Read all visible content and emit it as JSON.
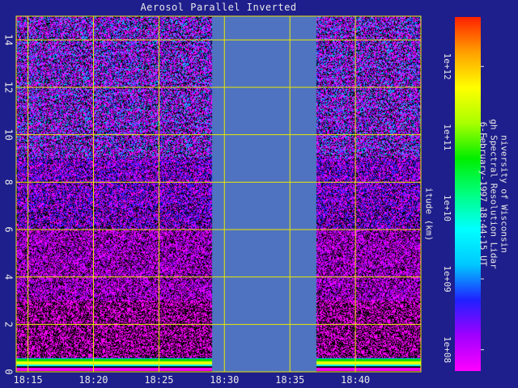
{
  "colors": {
    "background": "#1e1e8c",
    "grid": "#e8e800",
    "nodata": "#4f73c0",
    "text": "#e8e8e8"
  },
  "chart_data": {
    "type": "heatmap",
    "title": "Aerosol Parallel Inverted",
    "xlabel": "",
    "ylabel": "itude (km)",
    "x_ticks": [
      "18:15",
      "18:20",
      "18:25",
      "18:30",
      "18:35",
      "18:40"
    ],
    "x_tick_minutes": [
      0,
      5,
      10,
      15,
      20,
      25
    ],
    "xlim_minutes": [
      -0.9,
      30.0
    ],
    "y_ticks": [
      "0",
      "2",
      "4",
      "6",
      "8",
      "10",
      "12",
      "14"
    ],
    "ylim": [
      0,
      15
    ],
    "nodata_range": [
      "18:29",
      "18:37"
    ],
    "colorbar": {
      "scale": "log",
      "range": [
        50000000.0,
        5000000000000.0
      ],
      "ticks": [
        "1e+08",
        "1e+09",
        "1e+10",
        "1e+11",
        "1e+12"
      ],
      "colormap": [
        "#ff00ff",
        "#a000ff",
        "#2020ff",
        "#00c8ff",
        "#00ffff",
        "#00ff80",
        "#00ee00",
        "#a8ff00",
        "#ffff00",
        "#ffa000",
        "#ff2000"
      ]
    },
    "annotation_lines": [
      "niversity of Wisconsin",
      "gh Spectral Resolution Lidar",
      "6-February-1997 18:44:15 UT"
    ],
    "grid": true
  }
}
